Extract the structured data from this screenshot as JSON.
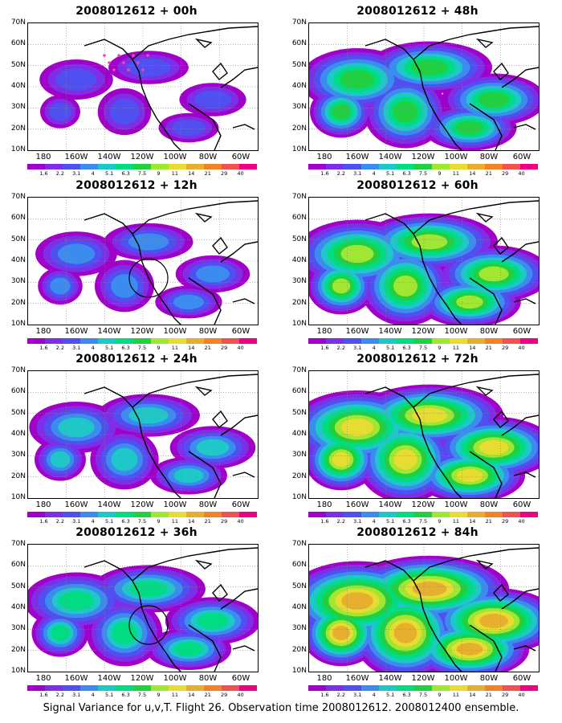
{
  "caption": "Signal Variance for u,v,T. Flight 26. Observation time 2008012612. 2008012400 ensemble.",
  "colorbar": {
    "labels": [
      "1.6",
      "2.2",
      "3.1",
      "4",
      "5.1",
      "6.3",
      "7.5",
      "9",
      "11",
      "14",
      "21",
      "29",
      "40"
    ],
    "colors": [
      "#a000c8",
      "#7d2ee6",
      "#5050f0",
      "#3c8cf0",
      "#1ec8c8",
      "#00dc82",
      "#20d040",
      "#a0e632",
      "#e6dc32",
      "#e6af2d",
      "#f08228",
      "#f05050",
      "#f00082"
    ]
  },
  "axes": {
    "y_labels": [
      "70N",
      "60N",
      "50N",
      "40N",
      "30N",
      "20N",
      "10N"
    ],
    "x_labels": [
      "180",
      "160W",
      "140W",
      "120W",
      "100W",
      "80W",
      "60W"
    ]
  },
  "panels": [
    {
      "title": "2008012612 + 00h",
      "intensity": 0.5,
      "circle": false,
      "dots": true
    },
    {
      "title": "2008012612 + 48h",
      "intensity": 2.5,
      "circle": false,
      "dots": false
    },
    {
      "title": "2008012612 + 12h",
      "intensity": 0.9,
      "circle": true,
      "dots": false
    },
    {
      "title": "2008012612 + 60h",
      "intensity": 3,
      "circle": false,
      "dots": false
    },
    {
      "title": "2008012612 + 24h",
      "intensity": 1.5,
      "circle": false,
      "dots": false
    },
    {
      "title": "2008012612 + 72h",
      "intensity": 3.5,
      "circle": false,
      "dots": false
    },
    {
      "title": "2008012612 + 36h",
      "intensity": 2,
      "circle": true,
      "dots": false
    },
    {
      "title": "2008012612 + 84h",
      "intensity": 4,
      "circle": false,
      "dots": false
    }
  ]
}
